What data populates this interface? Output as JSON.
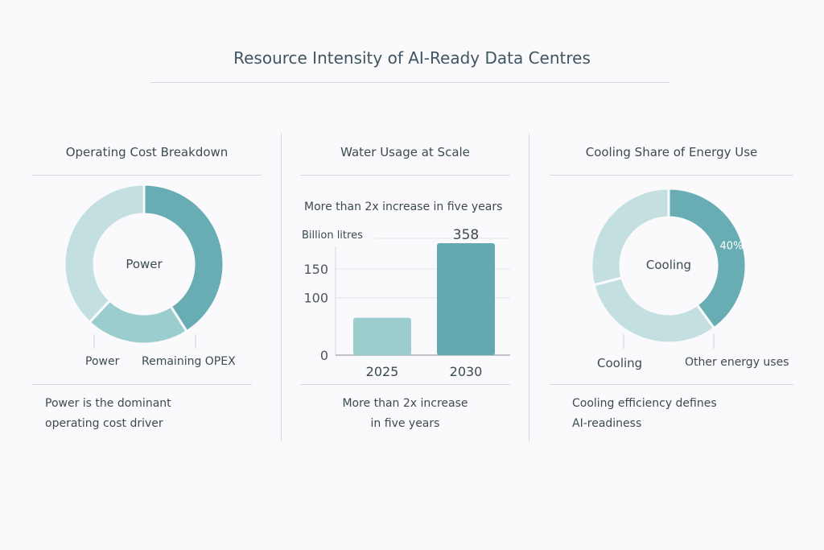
{
  "title": "Resource Intensity of AI-Ready Data Centres",
  "colors": {
    "dark": "#68adb4",
    "mid": "#9bcdcf",
    "light": "#c3dfe0",
    "text": "#3c4a52"
  },
  "chart_data": [
    {
      "type": "pie",
      "title": "Operating Cost Breakdown",
      "center_label": "Power",
      "slices": [
        {
          "label": "Power",
          "value": 41,
          "color": "#68adb4"
        },
        {
          "label": "Remaining OPEX",
          "value": 21,
          "color": "#9bcdcf"
        },
        {
          "label": "",
          "value": 38,
          "color": "#c3dfe0"
        }
      ],
      "legend_labels": [
        "Power",
        "Remaining OPEX"
      ],
      "caption": [
        "Power is the dominant",
        "operating cost driver"
      ]
    },
    {
      "type": "bar",
      "title": "Water Usage at Scale",
      "subtitle": "More than 2x increase in five years",
      "ylabel": "Billion litres",
      "categories": [
        "2025",
        "2030"
      ],
      "values": [
        65,
        358
      ],
      "data_labels": [
        "",
        "358"
      ],
      "yticks": [
        0,
        100,
        150
      ],
      "ylim": [
        0,
        195
      ],
      "grid": true,
      "caption": [
        "More than 2x increase",
        "in five years"
      ]
    },
    {
      "type": "pie",
      "title": "Cooling Share of Energy Use",
      "center_label": "Cooling",
      "slices": [
        {
          "label": "Cooling",
          "value": 40,
          "data_label": "40%",
          "color": "#68adb4"
        },
        {
          "label": "Other energy uses",
          "value": 31,
          "color": "#c3dfe0"
        },
        {
          "label": "",
          "value": 29,
          "color": "#c3dfe0"
        }
      ],
      "legend_labels": [
        "Cooling",
        "Other energy uses"
      ],
      "caption": [
        "Cooling efficiency defines",
        "AI-readiness"
      ]
    }
  ]
}
